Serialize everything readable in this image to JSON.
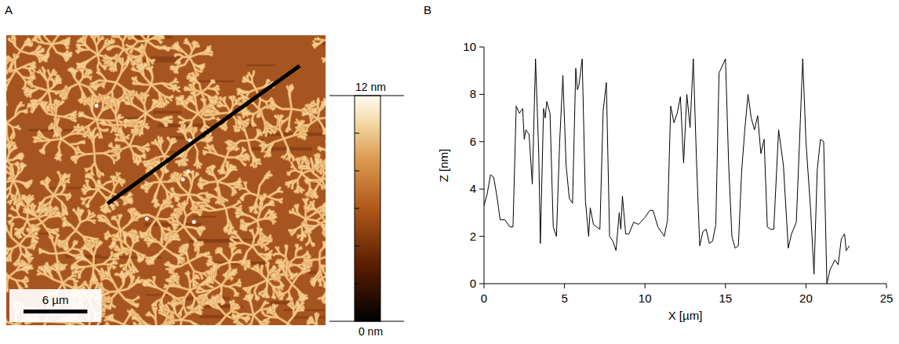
{
  "chart_data": {
    "type": "line",
    "panel_label": "B",
    "color": "#000000",
    "x_label": "X [µm]",
    "y_label": "Z [nm]",
    "x": [
      0,
      0.2,
      0.4,
      0.6,
      0.8,
      1.0,
      1.3,
      1.6,
      1.8,
      2.0,
      2.2,
      2.4,
      2.5,
      2.6,
      2.8,
      3.0,
      3.2,
      3.4,
      3.5,
      3.7,
      3.8,
      3.9,
      4.1,
      4.3,
      4.5,
      4.7,
      4.9,
      5.1,
      5.3,
      5.5,
      5.7,
      5.8,
      5.9,
      6.1,
      6.3,
      6.5,
      6.6,
      6.8,
      7.0,
      7.2,
      7.4,
      7.6,
      7.8,
      8.0,
      8.2,
      8.4,
      8.5,
      8.6,
      8.8,
      9.0,
      9.3,
      9.6,
      10.0,
      10.3,
      10.5,
      10.8,
      11.0,
      11.2,
      11.4,
      11.6,
      11.8,
      12.0,
      12.2,
      12.4,
      12.6,
      12.8,
      13.0,
      13.2,
      13.4,
      13.6,
      13.8,
      14.0,
      14.2,
      14.4,
      14.6,
      14.8,
      15.0,
      15.2,
      15.4,
      15.6,
      15.8,
      16.0,
      16.2,
      16.4,
      16.6,
      16.8,
      17.0,
      17.2,
      17.4,
      17.6,
      17.8,
      18.0,
      18.3,
      18.6,
      18.9,
      19.1,
      19.4,
      19.6,
      19.8,
      20.0,
      20.3,
      20.5,
      20.7,
      20.9,
      21.1,
      21.3,
      21.5,
      21.8,
      22.0,
      22.2,
      22.4,
      22.5,
      22.7
    ],
    "values": [
      3.3,
      3.8,
      4.6,
      4.5,
      3.7,
      2.7,
      2.7,
      2.4,
      2.4,
      7.5,
      7.2,
      7.4,
      6.1,
      6.5,
      6.3,
      4.2,
      9.5,
      5.5,
      1.7,
      7.4,
      7.0,
      7.7,
      7.2,
      2.4,
      2.0,
      6.0,
      8.8,
      5.0,
      3.6,
      3.4,
      9.1,
      8.2,
      8.4,
      9.5,
      3.5,
      2.0,
      3.2,
      2.5,
      2.4,
      2.3,
      7.3,
      8.5,
      2.0,
      1.8,
      1.4,
      3.0,
      2.3,
      3.7,
      2.1,
      2.1,
      2.6,
      2.5,
      2.8,
      3.1,
      3.1,
      2.4,
      2.2,
      2.0,
      2.7,
      7.5,
      6.8,
      7.2,
      7.9,
      5.1,
      8.0,
      6.6,
      9.5,
      5.2,
      1.6,
      2.2,
      2.3,
      1.7,
      1.8,
      2.5,
      8.9,
      9.2,
      9.5,
      5.0,
      2.0,
      1.5,
      1.6,
      4.7,
      6.5,
      8.0,
      7.0,
      6.5,
      7.1,
      5.5,
      6.1,
      2.4,
      2.3,
      2.3,
      6.5,
      5.0,
      1.5,
      2.1,
      2.6,
      6.0,
      9.5,
      6.0,
      3.0,
      0.4,
      4.8,
      6.1,
      6.0,
      0.0,
      0.6,
      1.0,
      0.8,
      1.9,
      2.1,
      1.4,
      1.6
    ],
    "xlim": [
      0,
      25
    ],
    "xticks": [
      0,
      5,
      10,
      15,
      20,
      25
    ],
    "ylim": [
      0,
      10
    ],
    "yticks": [
      0,
      2,
      4,
      6,
      8,
      10
    ],
    "grid": false
  },
  "image_panel": {
    "panel_label": "A",
    "field_um": 30,
    "scale_bar": {
      "value": 6,
      "label": "6 µm"
    },
    "colorbar": {
      "range": [
        0,
        12
      ],
      "ticks": [
        0,
        2,
        4,
        6,
        8,
        10,
        12
      ],
      "labels": [
        {
          "value": 12,
          "label": "12 nm"
        },
        {
          "value": 0,
          "label": "0 nm"
        }
      ]
    }
  }
}
